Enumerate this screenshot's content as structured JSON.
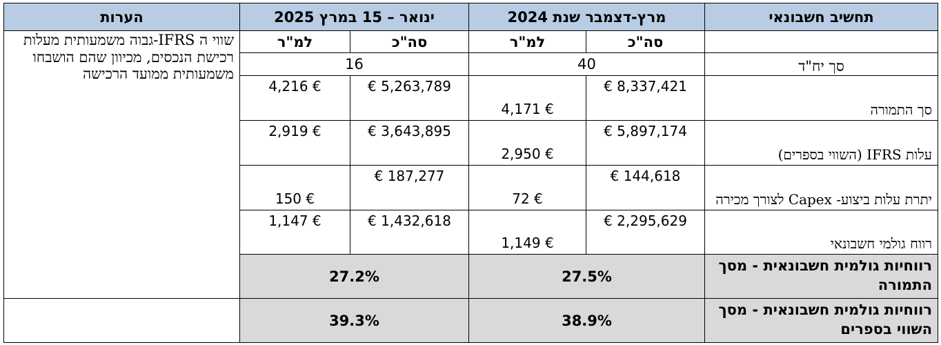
{
  "header": {
    "col_item": "תחשיב חשבונאי",
    "col_2024": "מרץ-דצמבר שנת 2024",
    "col_2025": "ינואר – 15 במרץ 2025",
    "col_notes": "הערות"
  },
  "subheader": {
    "total_2024": "סה\"כ",
    "per_sqm_2024": "למ\"ר",
    "total_2025": "סה\"כ",
    "per_sqm_2025": "למ\"ר"
  },
  "notes": "שווי ה IFRS-גבוה משמעותית מעלות רכישת הנכסים, מכיוון שהם הושבחו משמעותית ממועד הרכישה",
  "units_row": {
    "label": "סך יח\"ד",
    "val_2024": "40",
    "val_2025": "16"
  },
  "rows": [
    {
      "label": "סך התמורה",
      "total_2024": "8,337,421 €",
      "per_sqm_2024": "€ 4,171",
      "total_2025": "5,263,789 €",
      "per_sqm_2025": "€ 4,216"
    },
    {
      "label": "עלות IFRS (השווי בספרים)",
      "total_2024": "5,897,174 €",
      "per_sqm_2024": "€ 2,950",
      "total_2025": "3,643,895 €",
      "per_sqm_2025": "€ 2,919"
    },
    {
      "label": "יתרת עלות ביצוע- Capex לצורך מכירה",
      "total_2024": "144,618 €",
      "per_sqm_2024": "€ 72",
      "total_2025": "187,277 €",
      "per_sqm_2025": "€ 150"
    },
    {
      "label": "רווח גולמי חשבונאי",
      "total_2024": "2,295,629 €",
      "per_sqm_2024": "€ 1,149",
      "total_2025": "1,432,618 €",
      "per_sqm_2025": "€ 1,147"
    }
  ],
  "ratios": [
    {
      "label": "רווחיות גולמית חשבונאית - מסך התמורה",
      "val_2024": "27.5%",
      "val_2025": "27.2%"
    },
    {
      "label": "רווחיות גולמית חשבונאית - מסך השווי בספרים",
      "val_2024": "38.9%",
      "val_2025": "39.3%"
    }
  ],
  "colors": {
    "header_bg": "#b8cce4",
    "ratio_bg": "#d9d9d9"
  }
}
